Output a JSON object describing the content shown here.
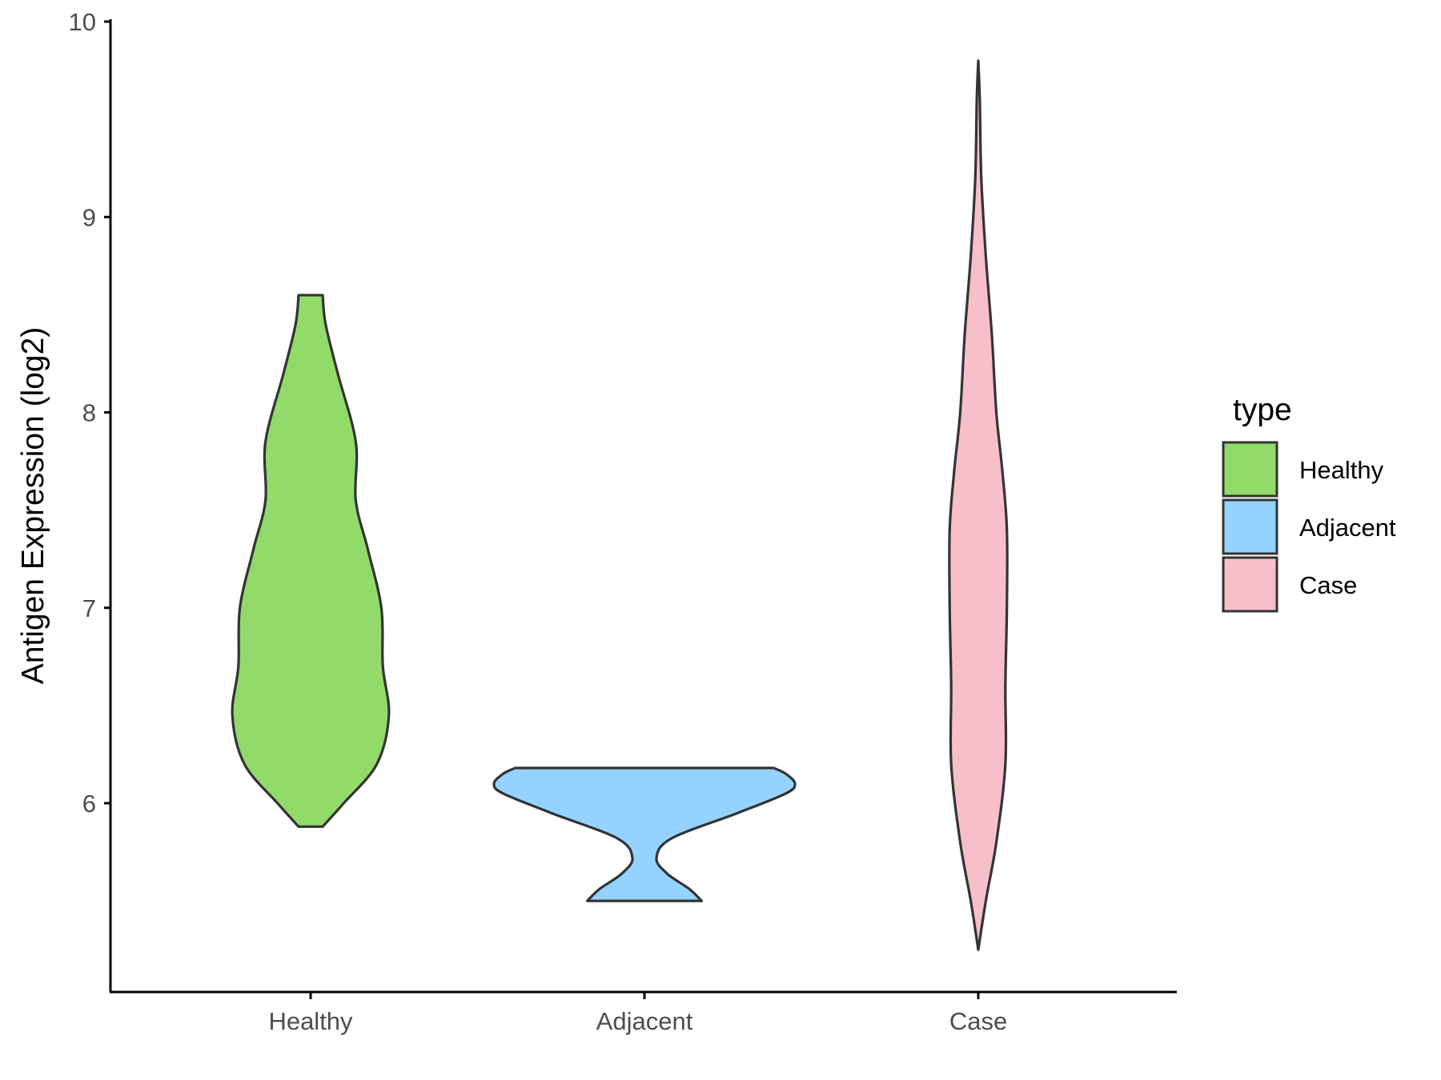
{
  "chart_data": {
    "type": "violin",
    "title": "",
    "xlabel": "",
    "ylabel": "Antigen Expression (log2)",
    "categories": [
      "Healthy",
      "Adjacent",
      "Case"
    ],
    "y_ticks": [
      "6",
      "7",
      "8",
      "9",
      "10"
    ],
    "ylim": [
      5.0,
      10.0
    ],
    "grid": false,
    "legend": {
      "title": "type",
      "placement": "right",
      "entries": [
        {
          "label": "Healthy",
          "color": "#92DA6A"
        },
        {
          "label": "Adjacent",
          "color": "#94D3FF"
        },
        {
          "label": "Case",
          "color": "#F7BFCA"
        }
      ]
    },
    "series": [
      {
        "category": "Healthy",
        "color": "#92DA6A",
        "min": 5.88,
        "max": 8.6,
        "density_profile": [
          [
            5.88,
            0.08
          ],
          [
            6.0,
            0.22
          ],
          [
            6.2,
            0.44
          ],
          [
            6.45,
            0.52
          ],
          [
            6.7,
            0.48
          ],
          [
            7.0,
            0.47
          ],
          [
            7.3,
            0.38
          ],
          [
            7.55,
            0.3
          ],
          [
            7.85,
            0.3
          ],
          [
            8.2,
            0.18
          ],
          [
            8.45,
            0.1
          ],
          [
            8.6,
            0.08
          ]
        ]
      },
      {
        "category": "Adjacent",
        "color": "#94D3FF",
        "min": 5.5,
        "max": 6.18,
        "density_profile": [
          [
            5.5,
            0.38
          ],
          [
            5.56,
            0.3
          ],
          [
            5.64,
            0.15
          ],
          [
            5.72,
            0.08
          ],
          [
            5.82,
            0.18
          ],
          [
            5.95,
            0.62
          ],
          [
            6.05,
            0.94
          ],
          [
            6.1,
            1.0
          ],
          [
            6.15,
            0.94
          ],
          [
            6.18,
            0.86
          ]
        ]
      },
      {
        "category": "Case",
        "color": "#F7BFCA",
        "min": 5.25,
        "max": 9.8,
        "density_profile": [
          [
            5.25,
            0.0
          ],
          [
            5.5,
            0.05
          ],
          [
            5.8,
            0.12
          ],
          [
            6.2,
            0.18
          ],
          [
            6.6,
            0.18
          ],
          [
            7.0,
            0.19
          ],
          [
            7.4,
            0.19
          ],
          [
            7.7,
            0.16
          ],
          [
            8.0,
            0.12
          ],
          [
            8.4,
            0.09
          ],
          [
            8.8,
            0.05
          ],
          [
            9.2,
            0.02
          ],
          [
            9.6,
            0.01
          ],
          [
            9.8,
            0.0
          ]
        ]
      }
    ]
  }
}
